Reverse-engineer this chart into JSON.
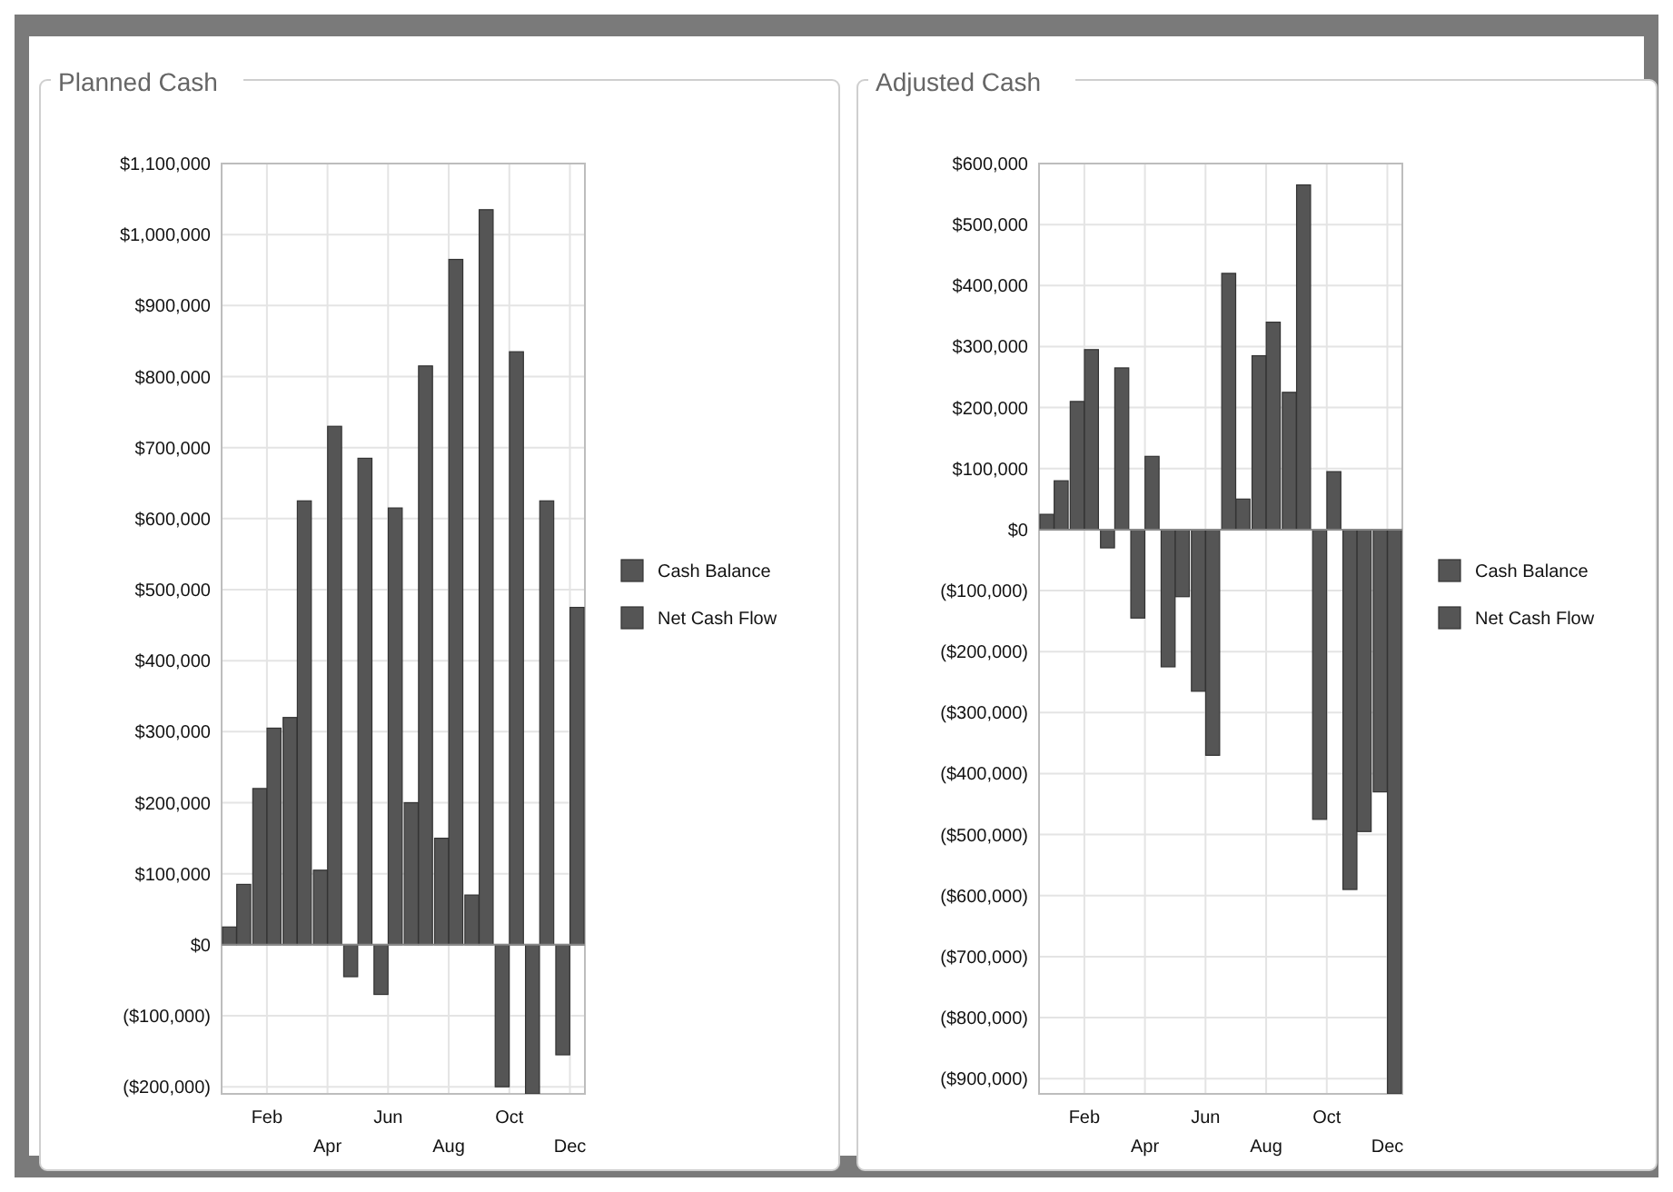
{
  "chart_data": [
    {
      "type": "bar",
      "title": "Planned Cash",
      "categories": [
        null,
        "Feb",
        null,
        "Apr",
        null,
        "Jun",
        null,
        "Aug",
        null,
        "Oct",
        null,
        "Dec"
      ],
      "series": [
        {
          "name": "Net Cash Flow",
          "color": "#555555",
          "values": [
            25000,
            220000,
            320000,
            105000,
            -45000,
            -70000,
            200000,
            150000,
            70000,
            -200000,
            -210000,
            -155000
          ]
        },
        {
          "name": "Cash Balance",
          "color": "#555555",
          "values": [
            85000,
            305000,
            625000,
            730000,
            685000,
            615000,
            815000,
            965000,
            1035000,
            835000,
            625000,
            475000
          ]
        }
      ],
      "ylim": [
        -210000,
        1100000
      ],
      "yticks": [
        {
          "value": -200000,
          "label": "($200,000)"
        },
        {
          "value": -100000,
          "label": "($100,000)"
        },
        {
          "value": 0,
          "label": "$0"
        },
        {
          "value": 100000,
          "label": "$100,000"
        },
        {
          "value": 200000,
          "label": "$200,000"
        },
        {
          "value": 300000,
          "label": "$300,000"
        },
        {
          "value": 400000,
          "label": "$400,000"
        },
        {
          "value": 500000,
          "label": "$500,000"
        },
        {
          "value": 600000,
          "label": "$600,000"
        },
        {
          "value": 700000,
          "label": "$700,000"
        },
        {
          "value": 800000,
          "label": "$800,000"
        },
        {
          "value": 900000,
          "label": "$900,000"
        },
        {
          "value": 1000000,
          "label": "$1,000,000"
        },
        {
          "value": 1100000,
          "label": "$1,100,000"
        }
      ],
      "grid": true,
      "legend": "right"
    },
    {
      "type": "bar",
      "title": "Adjusted Cash",
      "categories": [
        null,
        "Feb",
        null,
        "Apr",
        null,
        "Jun",
        null,
        "Aug",
        null,
        "Oct",
        null,
        "Dec"
      ],
      "series": [
        {
          "name": "Net Cash Flow",
          "color": "#555555",
          "values": [
            25000,
            210000,
            -30000,
            -145000,
            -225000,
            -265000,
            420000,
            285000,
            225000,
            -475000,
            -590000,
            -430000
          ]
        },
        {
          "name": "Cash Balance",
          "color": "#555555",
          "values": [
            80000,
            295000,
            265000,
            120000,
            -110000,
            -370000,
            50000,
            340000,
            565000,
            95000,
            -495000,
            -925000
          ]
        }
      ],
      "ylim": [
        -925000,
        600000
      ],
      "yticks": [
        {
          "value": -900000,
          "label": "($900,000)"
        },
        {
          "value": -800000,
          "label": "($800,000)"
        },
        {
          "value": -700000,
          "label": "($700,000)"
        },
        {
          "value": -600000,
          "label": "($600,000)"
        },
        {
          "value": -500000,
          "label": "($500,000)"
        },
        {
          "value": -400000,
          "label": "($400,000)"
        },
        {
          "value": -300000,
          "label": "($300,000)"
        },
        {
          "value": -200000,
          "label": "($200,000)"
        },
        {
          "value": -100000,
          "label": "($100,000)"
        },
        {
          "value": 0,
          "label": "$0"
        },
        {
          "value": 100000,
          "label": "$100,000"
        },
        {
          "value": 200000,
          "label": "$200,000"
        },
        {
          "value": 300000,
          "label": "$300,000"
        },
        {
          "value": 400000,
          "label": "$400,000"
        },
        {
          "value": 500000,
          "label": "$500,000"
        },
        {
          "value": 600000,
          "label": "$600,000"
        }
      ],
      "grid": true,
      "legend": "right"
    }
  ]
}
